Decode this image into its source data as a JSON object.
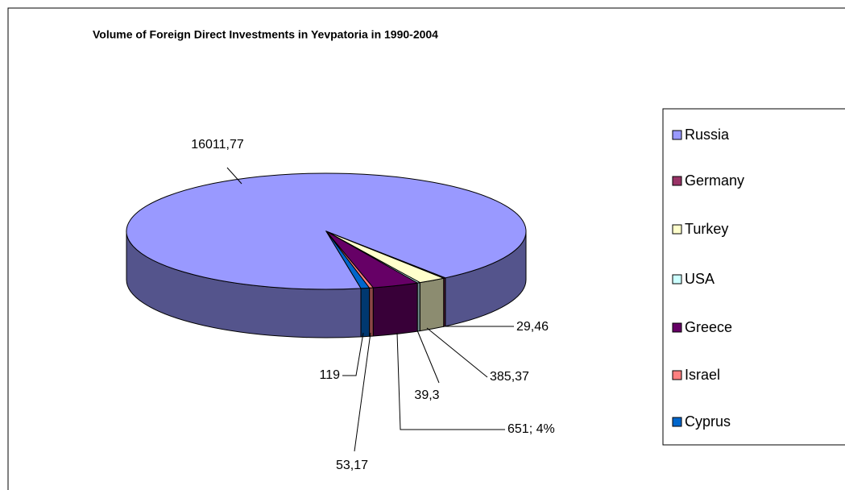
{
  "chart_data": {
    "type": "pie3d",
    "title": "Volume of Foreign Direct Investments in Yevpatoria in 1990-2004",
    "categories": [
      "Russia",
      "Germany",
      "Turkey",
      "USA",
      "Greece",
      "Israel",
      "Cyprus"
    ],
    "values": [
      16011.77,
      29.46,
      385.37,
      39.3,
      651,
      53.17,
      119
    ],
    "value_labels": [
      "16011,77",
      "29,46",
      "385,37",
      "39,3",
      "651; 4%",
      "53,17",
      "119"
    ],
    "colors": [
      "#9999ff",
      "#993366",
      "#ffffcc",
      "#ccffff",
      "#660066",
      "#ff8080",
      "#0066cc"
    ],
    "legend": "right"
  }
}
